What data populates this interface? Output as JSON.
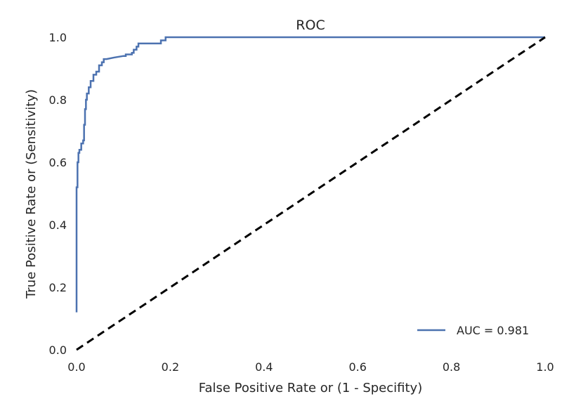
{
  "chart_data": {
    "type": "line",
    "title": "ROC",
    "xlabel": "False Positive Rate or (1 - Specifity)",
    "ylabel": "True Positive Rate or (Sensitivity)",
    "xlim": [
      0,
      1
    ],
    "ylim": [
      0,
      1
    ],
    "grid": false,
    "legend_position": "bottom-right",
    "xticks": [
      "0.0",
      "0.2",
      "0.4",
      "0.6",
      "0.8",
      "1.0"
    ],
    "yticks": [
      "0.0",
      "0.2",
      "0.4",
      "0.6",
      "0.8",
      "1.0"
    ],
    "series": [
      {
        "name": "AUC = 0.981",
        "color": "#4c72b0",
        "style": "solid",
        "x": [
          0.0,
          0.0,
          0.002,
          0.002,
          0.004,
          0.004,
          0.006,
          0.006,
          0.01,
          0.01,
          0.014,
          0.014,
          0.016,
          0.016,
          0.018,
          0.018,
          0.02,
          0.02,
          0.022,
          0.022,
          0.026,
          0.026,
          0.03,
          0.03,
          0.036,
          0.036,
          0.042,
          0.042,
          0.048,
          0.048,
          0.054,
          0.054,
          0.058,
          0.058,
          0.064,
          0.064,
          0.08,
          0.1,
          0.105,
          0.105,
          0.118,
          0.118,
          0.122,
          0.122,
          0.128,
          0.128,
          0.132,
          0.132,
          0.18,
          0.18,
          0.19,
          0.19,
          0.27,
          1.0
        ],
        "y": [
          0.12,
          0.52,
          0.52,
          0.6,
          0.6,
          0.63,
          0.63,
          0.64,
          0.64,
          0.66,
          0.66,
          0.67,
          0.67,
          0.72,
          0.72,
          0.77,
          0.77,
          0.8,
          0.8,
          0.82,
          0.82,
          0.84,
          0.84,
          0.86,
          0.86,
          0.88,
          0.88,
          0.89,
          0.89,
          0.91,
          0.91,
          0.92,
          0.92,
          0.93,
          0.93,
          0.93,
          0.935,
          0.94,
          0.94,
          0.945,
          0.945,
          0.95,
          0.95,
          0.96,
          0.96,
          0.97,
          0.97,
          0.98,
          0.98,
          0.99,
          0.99,
          1.0,
          1.0,
          1.0
        ]
      },
      {
        "color": "#000000",
        "style": "dashed",
        "x": [
          0.0,
          1.0
        ],
        "y": [
          0.0,
          1.0
        ]
      }
    ]
  }
}
